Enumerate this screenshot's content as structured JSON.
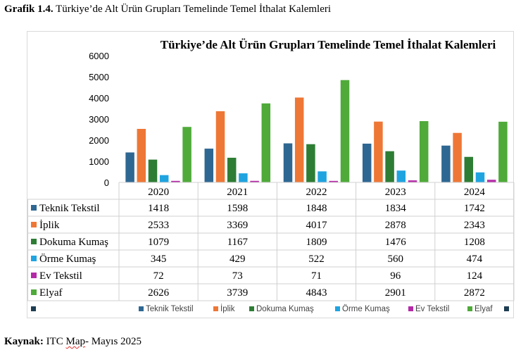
{
  "caption": {
    "label": "Grafik 1.4.",
    "text": "Türkiye’de Alt Ürün Grupları Temelinde Temel İthalat Kalemleri"
  },
  "source": {
    "label": "Kaynak:",
    "text_before": "ITC ",
    "text_marked": "Map",
    "text_after": "- Mayıs 2025"
  },
  "chart_data": {
    "type": "bar",
    "title": "Türkiye’de Alt Ürün Grupları Temelinde Temel İthalat Kalemleri",
    "categories": [
      "2020",
      "2021",
      "2022",
      "2023",
      "2024"
    ],
    "y_ticks": [
      0,
      1000,
      2000,
      3000,
      4000,
      5000,
      6000
    ],
    "ylim": [
      0,
      6000
    ],
    "grid": false,
    "legend_position": "bottom",
    "data_table": true,
    "series": [
      {
        "name": "Teknik Tekstil",
        "color": "#2e6792",
        "values": [
          1418,
          1598,
          1848,
          1834,
          1742
        ]
      },
      {
        "name": "İplik",
        "color": "#ee7736",
        "values": [
          2533,
          3369,
          4017,
          2878,
          2343
        ]
      },
      {
        "name": "Dokuma Kumaş",
        "color": "#2e7d35",
        "values": [
          1079,
          1167,
          1809,
          1476,
          1208
        ]
      },
      {
        "name": "Örme Kumaş",
        "color": "#1fa4e0",
        "values": [
          345,
          429,
          522,
          560,
          474
        ]
      },
      {
        "name": "Ev Tekstil",
        "color": "#b42aa7",
        "values": [
          72,
          73,
          71,
          96,
          124
        ]
      },
      {
        "name": "Elyaf",
        "color": "#4faa3a",
        "values": [
          2626,
          3739,
          4843,
          2901,
          2872
        ]
      }
    ],
    "extra_legend_color": "#1e3d52"
  }
}
